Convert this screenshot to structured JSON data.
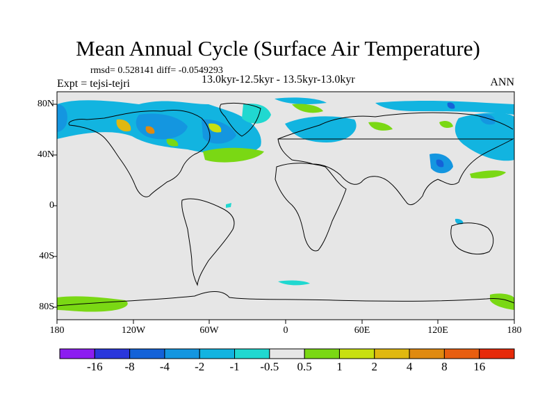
{
  "title": "Mean Annual Cycle (Surface Air Temperature)",
  "stats": "rmsd= 0.528141 diff= -0.0549293",
  "experiment": "Expt = tejsi-tejri",
  "period": "13.0kyr-12.5kyr - 13.5kyr-13.0kyr",
  "season": "ANN",
  "map": {
    "lat_ticks": [
      "80N",
      "40N",
      "0",
      "40S",
      "80S"
    ],
    "lon_ticks": [
      "180",
      "120W",
      "60W",
      "0",
      "60E",
      "120E",
      "180"
    ]
  },
  "colorbar": {
    "labels": [
      "-16",
      "-8",
      "-4",
      "-2",
      "-1",
      "-0.5",
      "0.5",
      "1",
      "2",
      "4",
      "8",
      "16"
    ],
    "colors": [
      "#8c1df0",
      "#2a36dc",
      "#1462d8",
      "#1496e0",
      "#12b4e0",
      "#20d8d0",
      "#e6e6e6",
      "#7ad814",
      "#c8e010",
      "#e0b810",
      "#e08a10",
      "#e85e10",
      "#e62a0a"
    ]
  },
  "chart_data": {
    "type": "map",
    "variable": "Surface Air Temperature difference",
    "season": "ANN",
    "levels": [
      -16,
      -8,
      -4,
      -2,
      -1,
      -0.5,
      0.5,
      1,
      2,
      4,
      8,
      16
    ],
    "xlim": [
      -180,
      180
    ],
    "ylim": [
      -90,
      90
    ]
  }
}
